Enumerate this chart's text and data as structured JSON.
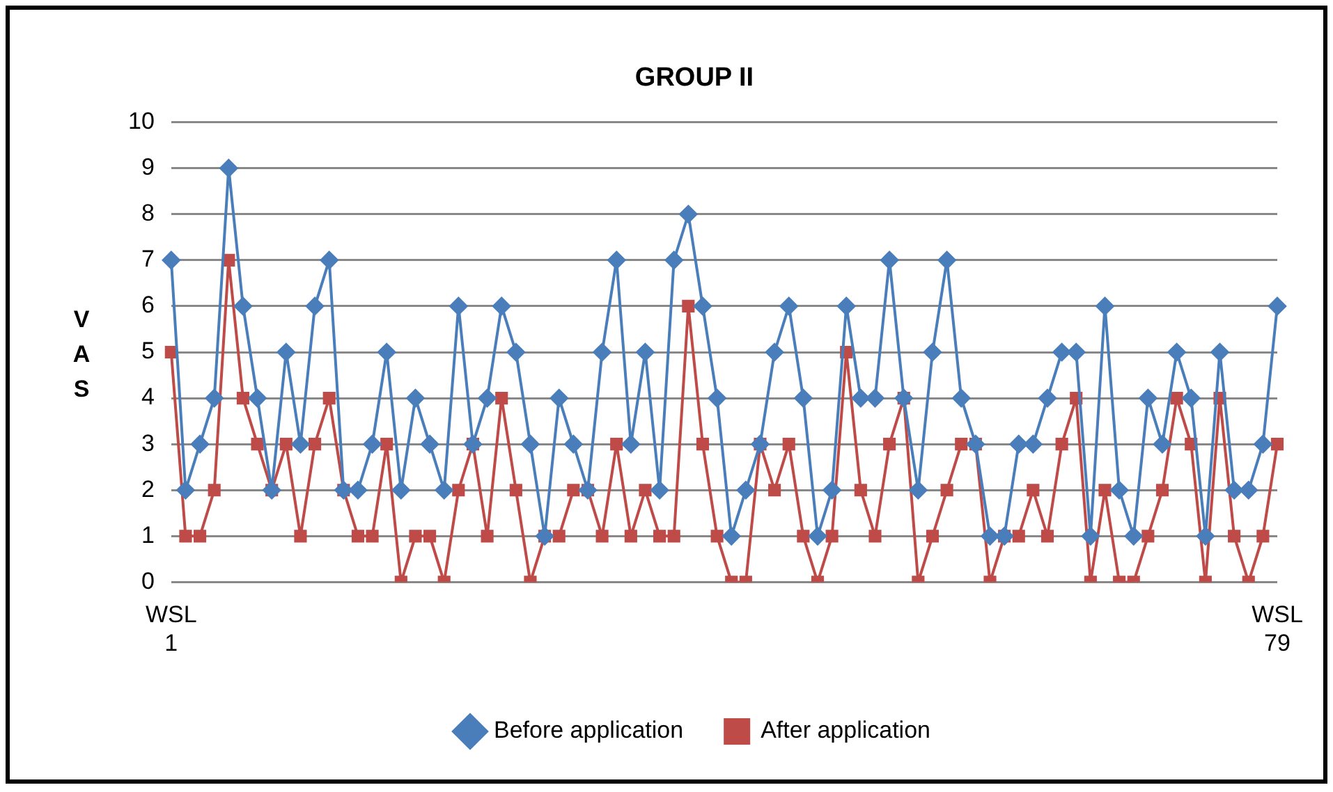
{
  "chart_data": {
    "type": "line",
    "title": "GROUP II",
    "ylabel": "VAS",
    "categories": [
      "WSL 1",
      null,
      null,
      null,
      null,
      null,
      null,
      null,
      null,
      null,
      null,
      null,
      null,
      null,
      null,
      null,
      null,
      null,
      null,
      null,
      null,
      null,
      null,
      null,
      null,
      null,
      null,
      null,
      null,
      null,
      null,
      null,
      null,
      null,
      null,
      null,
      null,
      null,
      null,
      null,
      null,
      null,
      null,
      null,
      null,
      null,
      null,
      null,
      null,
      null,
      null,
      null,
      null,
      null,
      null,
      null,
      null,
      null,
      null,
      null,
      null,
      null,
      null,
      null,
      null,
      null,
      null,
      null,
      null,
      null,
      null,
      null,
      null,
      null,
      null,
      null,
      null,
      "WSL 79"
    ],
    "ylim": [
      0,
      10
    ],
    "yticks": [
      0,
      1,
      2,
      3,
      4,
      5,
      6,
      7,
      8,
      9,
      10
    ],
    "grid": "y",
    "legend": "bottom",
    "series": [
      {
        "name": "Before application",
        "color": "#4a7ebb",
        "marker": "diamond",
        "values": [
          7,
          2,
          3,
          4,
          9,
          6,
          4,
          2,
          5,
          3,
          6,
          7,
          2,
          2,
          3,
          5,
          2,
          4,
          3,
          2,
          6,
          3,
          4,
          6,
          5,
          3,
          1,
          4,
          3,
          2,
          5,
          7,
          3,
          5,
          2,
          7,
          8,
          6,
          4,
          1,
          2,
          3,
          5,
          6,
          4,
          1,
          2,
          6,
          4,
          4,
          7,
          4,
          2,
          5,
          7,
          4,
          3,
          1,
          1,
          3,
          3,
          4,
          5,
          5,
          1,
          6,
          2,
          1,
          4,
          3,
          5,
          4,
          1,
          5,
          2,
          2,
          3,
          6
        ]
      },
      {
        "name": "After application",
        "color": "#be4b48",
        "marker": "square",
        "values": [
          5,
          1,
          1,
          2,
          7,
          4,
          3,
          2,
          3,
          1,
          3,
          4,
          2,
          1,
          1,
          3,
          0,
          1,
          1,
          0,
          2,
          3,
          1,
          4,
          2,
          0,
          1,
          1,
          2,
          2,
          1,
          3,
          1,
          2,
          1,
          1,
          6,
          3,
          1,
          0,
          0,
          3,
          2,
          3,
          1,
          0,
          1,
          5,
          2,
          1,
          3,
          4,
          0,
          1,
          2,
          3,
          3,
          0,
          1,
          1,
          2,
          1,
          3,
          4,
          0,
          2,
          0,
          0,
          1,
          2,
          4,
          3,
          0,
          4,
          1,
          0,
          1,
          3
        ]
      }
    ]
  }
}
